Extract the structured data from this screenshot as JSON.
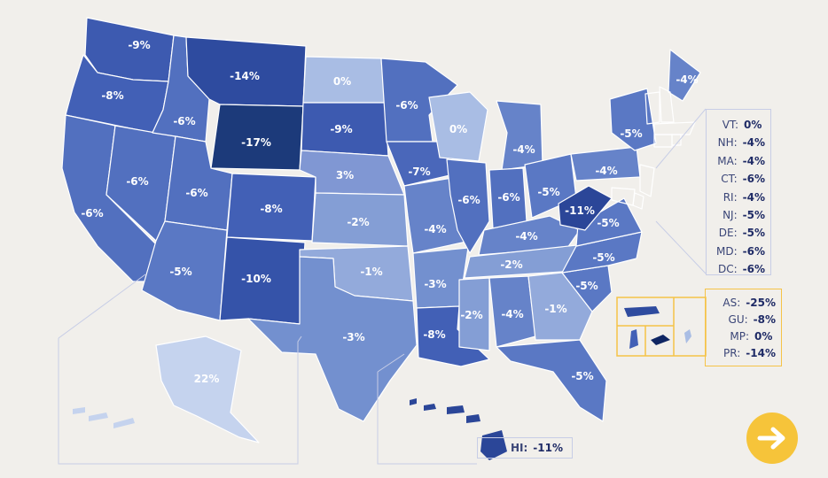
{
  "colors": {
    "background": "#f1efeb",
    "scale": {
      "-25": "#0f2663",
      "-17": "#1c3a7a",
      "-14": "#2e4b9f",
      "-11": "#2b4698",
      "-10": "#3553a9",
      "-9": "#3d5ab0",
      "-8": "#4260b6",
      "-7": "#4a67ba",
      "-6": "#5270bf",
      "-5": "#5a78c4",
      "-4": "#6683c9",
      "-3": "#7390cf",
      "-2": "#849ed5",
      "-1": "#93aadb",
      "0": "#a9bde4",
      "3": "#8097d3",
      "22": "#c5d3ee"
    },
    "button": "#f6c43a"
  },
  "states": {
    "WA": "-9%",
    "OR": "-8%",
    "CA": "-6%",
    "ID": "-6%",
    "NV": "-6%",
    "UT": "-6%",
    "AZ": "-5%",
    "MT": "-14%",
    "WY": "-17%",
    "CO": "-8%",
    "NM": "-10%",
    "ND": "0%",
    "SD": "-9%",
    "NE": "3%",
    "KS": "-2%",
    "OK": "-1%",
    "TX": "-3%",
    "MN": "-6%",
    "IA": "-7%",
    "MO": "-4%",
    "AR": "-3%",
    "LA": "-8%",
    "WI": "0%",
    "IL": "-6%",
    "MI": "-4%",
    "IN": "-6%",
    "OH": "-5%",
    "KY": "-4%",
    "TN": "-2%",
    "MS": "-2%",
    "AL": "-4%",
    "GA": "-1%",
    "FL": "-5%",
    "SC": "-5%",
    "NC": "-5%",
    "VA": "-5%",
    "WV": "-11%",
    "PA": "-4%",
    "NY": "-5%",
    "ME": "-4%",
    "AK": "22%"
  },
  "northeast": [
    {
      "code": "VT:",
      "value": "0%"
    },
    {
      "code": "NH:",
      "value": "-4%"
    },
    {
      "code": "MA:",
      "value": "-4%"
    },
    {
      "code": "CT:",
      "value": "-6%"
    },
    {
      "code": "RI:",
      "value": "-4%"
    },
    {
      "code": "NJ:",
      "value": "-5%"
    },
    {
      "code": "DE:",
      "value": "-5%"
    },
    {
      "code": "MD:",
      "value": "-6%"
    },
    {
      "code": "DC:",
      "value": "-6%"
    }
  ],
  "territories": [
    {
      "code": "AS:",
      "value": "-25%"
    },
    {
      "code": "GU:",
      "value": "-8%"
    },
    {
      "code": "MP:",
      "value": "0%"
    },
    {
      "code": "PR:",
      "value": "-14%"
    }
  ],
  "hawaii": {
    "code": "HI:",
    "value": "-11%"
  }
}
